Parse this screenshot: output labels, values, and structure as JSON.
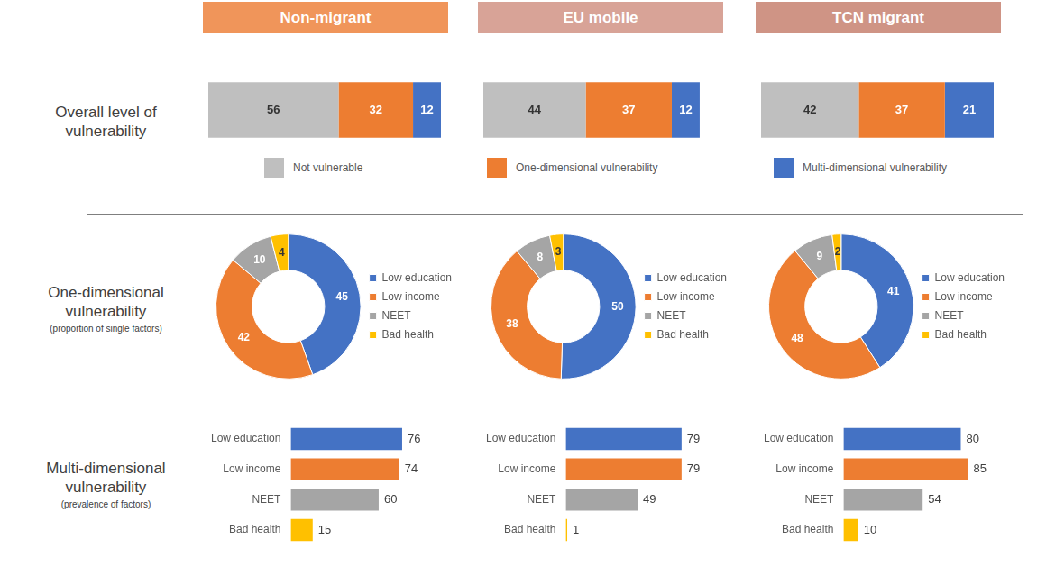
{
  "columns": [
    {
      "title": "Non-migrant",
      "color": "#f0955a"
    },
    {
      "title": "EU mobile",
      "color": "#d8a397"
    },
    {
      "title": "TCN migrant",
      "color": "#cf9485"
    }
  ],
  "rows": [
    {
      "title": "Overall level of vulnerability"
    },
    {
      "title": "One-dimensional vulnerability",
      "subtitle": "(proportion of single factors)"
    },
    {
      "title": "Multi-dimensional vulnerability",
      "subtitle": "(prevalence of factors)"
    }
  ],
  "chart_data": [
    {
      "type": "bar",
      "orientation": "horizontal",
      "stacked": true,
      "categories": [
        null
      ],
      "series": [
        {
          "name": "Not vulnerable",
          "color": "#bfbfbf",
          "values": [
            56
          ]
        },
        {
          "name": "One-dimensional vulnerability",
          "color": "#ed7d31",
          "values": [
            32
          ]
        },
        {
          "name": "Multi-dimensional vulnerability",
          "color": "#4472c4",
          "values": [
            12
          ]
        }
      ],
      "xlim": [
        0,
        100
      ],
      "data_labels": true,
      "tick_labels": false,
      "grid": false,
      "legend": "bottom"
    },
    {
      "type": "bar",
      "orientation": "horizontal",
      "stacked": true,
      "categories": [
        null
      ],
      "series": [
        {
          "name": "Not vulnerable",
          "color": "#bfbfbf",
          "values": [
            44
          ]
        },
        {
          "name": "One-dimensional vulnerability",
          "color": "#ed7d31",
          "values": [
            37
          ]
        },
        {
          "name": "Multi-dimensional vulnerability",
          "color": "#4472c4",
          "values": [
            12
          ]
        }
      ],
      "xlim": [
        0,
        100
      ],
      "data_labels": true,
      "tick_labels": false,
      "grid": false
    },
    {
      "type": "bar",
      "orientation": "horizontal",
      "stacked": true,
      "categories": [
        null
      ],
      "series": [
        {
          "name": "Not vulnerable",
          "color": "#bfbfbf",
          "values": [
            42
          ]
        },
        {
          "name": "One-dimensional vulnerability",
          "color": "#ed7d31",
          "values": [
            37
          ]
        },
        {
          "name": "Multi-dimensional vulnerability",
          "color": "#4472c4",
          "values": [
            21
          ]
        }
      ],
      "xlim": [
        0,
        100
      ],
      "data_labels": true,
      "tick_labels": false,
      "grid": false
    },
    {
      "type": "doughnut",
      "categories": [
        "Low education",
        "Low income",
        "NEET",
        "Bad health"
      ],
      "values": [
        45,
        42,
        10,
        4
      ],
      "colors": [
        "#4472c4",
        "#ed7d31",
        "#a5a5a5",
        "#ffc000"
      ],
      "data_labels": true,
      "legend": "right"
    },
    {
      "type": "doughnut",
      "categories": [
        "Low education",
        "Low income",
        "NEET",
        "Bad health"
      ],
      "values": [
        50,
        38,
        8,
        3
      ],
      "colors": [
        "#4472c4",
        "#ed7d31",
        "#a5a5a5",
        "#ffc000"
      ],
      "data_labels": true,
      "legend": "right"
    },
    {
      "type": "doughnut",
      "categories": [
        "Low education",
        "Low income",
        "NEET",
        "Bad health"
      ],
      "values": [
        41,
        48,
        9,
        2
      ],
      "colors": [
        "#4472c4",
        "#ed7d31",
        "#a5a5a5",
        "#ffc000"
      ],
      "data_labels": true,
      "legend": "right"
    },
    {
      "type": "bar",
      "orientation": "horizontal",
      "categories": [
        "Low education",
        "Low income",
        "NEET",
        "Bad health"
      ],
      "values": [
        76,
        74,
        60,
        15
      ],
      "colors": [
        "#4472c4",
        "#ed7d31",
        "#a5a5a5",
        "#ffc000"
      ],
      "xlim": [
        0,
        100
      ],
      "data_labels": true,
      "tick_labels": "y",
      "grid": false
    },
    {
      "type": "bar",
      "orientation": "horizontal",
      "categories": [
        "Low education",
        "Low income",
        "NEET",
        "Bad health"
      ],
      "values": [
        79,
        79,
        49,
        1
      ],
      "colors": [
        "#4472c4",
        "#ed7d31",
        "#a5a5a5",
        "#ffc000"
      ],
      "xlim": [
        0,
        100
      ],
      "data_labels": true,
      "tick_labels": "y",
      "grid": false
    },
    {
      "type": "bar",
      "orientation": "horizontal",
      "categories": [
        "Low education",
        "Low income",
        "NEET",
        "Bad health"
      ],
      "values": [
        80,
        85,
        54,
        10
      ],
      "colors": [
        "#4472c4",
        "#ed7d31",
        "#a5a5a5",
        "#ffc000"
      ],
      "xlim": [
        0,
        100
      ],
      "data_labels": true,
      "tick_labels": "y",
      "grid": false
    }
  ]
}
